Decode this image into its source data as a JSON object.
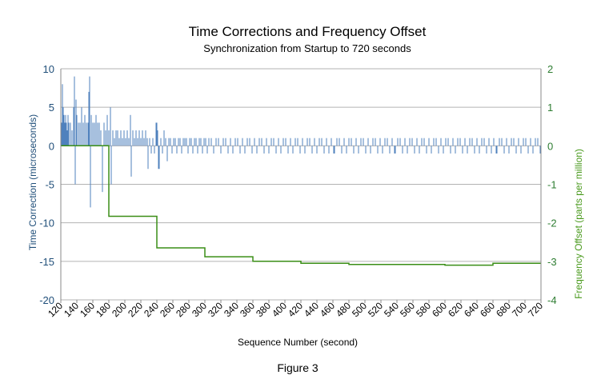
{
  "caption": "Figure 3",
  "colors": {
    "bars": "#4f81bd",
    "freq_line": "#3a8e16",
    "left_axis": "#1f4e79",
    "right_axis": "#4a9a1d",
    "grid": "#b3b3b3"
  },
  "chart_data": {
    "type": "bar",
    "title": "Time Corrections and Frequency Offset",
    "subtitle": "Synchronization from Startup to 720 seconds",
    "xlabel": "Sequence Number (second)",
    "ylabel": "Time Correction (microseconds)",
    "y2label": "Frequency Offset (parts per million)",
    "xlim": [
      120,
      720
    ],
    "ylim": [
      -20,
      10
    ],
    "y2lim": [
      -4,
      2
    ],
    "x_ticks": [
      120,
      140,
      160,
      180,
      200,
      220,
      240,
      260,
      280,
      300,
      320,
      340,
      360,
      380,
      400,
      420,
      440,
      460,
      480,
      500,
      520,
      540,
      560,
      580,
      600,
      620,
      640,
      660,
      680,
      700,
      720
    ],
    "y_ticks": [
      10,
      5,
      0,
      -5,
      -10,
      -15,
      -20
    ],
    "y2_ticks": [
      2,
      1,
      0,
      -1,
      -2,
      -3,
      -4
    ],
    "grid": true,
    "series": [
      {
        "name": "",
        "kind": "bar",
        "axis": "left",
        "description": "Time correction per second: large spikes during startup (up to 9 and down to -8), tapering to ±1 microsecond after about 300 s",
        "values": [
          {
            "x": 121,
            "y": 3
          },
          {
            "x": 122,
            "y": 8
          },
          {
            "x": 123,
            "y": 5
          },
          {
            "x": 124,
            "y": 4
          },
          {
            "x": 125,
            "y": 3
          },
          {
            "x": 126,
            "y": 4
          },
          {
            "x": 127,
            "y": 3
          },
          {
            "x": 128,
            "y": 2
          },
          {
            "x": 129,
            "y": 4
          },
          {
            "x": 130,
            "y": 3
          },
          {
            "x": 132,
            "y": 3
          },
          {
            "x": 134,
            "y": 2
          },
          {
            "x": 136,
            "y": 5
          },
          {
            "x": 137,
            "y": 9
          },
          {
            "x": 138,
            "y": -5
          },
          {
            "x": 139,
            "y": 6
          },
          {
            "x": 140,
            "y": 4
          },
          {
            "x": 142,
            "y": 3
          },
          {
            "x": 144,
            "y": 3
          },
          {
            "x": 146,
            "y": 5
          },
          {
            "x": 148,
            "y": 3
          },
          {
            "x": 150,
            "y": 4
          },
          {
            "x": 152,
            "y": 3
          },
          {
            "x": 154,
            "y": 3
          },
          {
            "x": 155,
            "y": 7
          },
          {
            "x": 156,
            "y": 9
          },
          {
            "x": 157,
            "y": -8
          },
          {
            "x": 158,
            "y": 4
          },
          {
            "x": 160,
            "y": 3
          },
          {
            "x": 162,
            "y": 3
          },
          {
            "x": 164,
            "y": 4
          },
          {
            "x": 166,
            "y": 3
          },
          {
            "x": 168,
            "y": 3
          },
          {
            "x": 170,
            "y": 2
          },
          {
            "x": 172,
            "y": -6
          },
          {
            "x": 174,
            "y": 3
          },
          {
            "x": 176,
            "y": 2
          },
          {
            "x": 178,
            "y": 4
          },
          {
            "x": 180,
            "y": 2
          },
          {
            "x": 182,
            "y": 5
          },
          {
            "x": 183,
            "y": -5
          },
          {
            "x": 185,
            "y": 2
          },
          {
            "x": 187,
            "y": 1
          },
          {
            "x": 189,
            "y": 2
          },
          {
            "x": 191,
            "y": 2
          },
          {
            "x": 193,
            "y": 1
          },
          {
            "x": 195,
            "y": 2
          },
          {
            "x": 197,
            "y": 1
          },
          {
            "x": 199,
            "y": 2
          },
          {
            "x": 201,
            "y": 1
          },
          {
            "x": 203,
            "y": 2
          },
          {
            "x": 205,
            "y": 1
          },
          {
            "x": 207,
            "y": 4
          },
          {
            "x": 208,
            "y": -4
          },
          {
            "x": 210,
            "y": 2
          },
          {
            "x": 212,
            "y": 1
          },
          {
            "x": 214,
            "y": 2
          },
          {
            "x": 216,
            "y": 1
          },
          {
            "x": 218,
            "y": 2
          },
          {
            "x": 220,
            "y": 1
          },
          {
            "x": 222,
            "y": 2
          },
          {
            "x": 224,
            "y": 1
          },
          {
            "x": 226,
            "y": 2
          },
          {
            "x": 228,
            "y": 1
          },
          {
            "x": 229,
            "y": -3
          },
          {
            "x": 231,
            "y": 1
          },
          {
            "x": 233,
            "y": -1
          },
          {
            "x": 235,
            "y": 1
          },
          {
            "x": 237,
            "y": -1
          },
          {
            "x": 239,
            "y": 3
          },
          {
            "x": 240,
            "y": 3
          },
          {
            "x": 241,
            "y": 2
          },
          {
            "x": 242,
            "y": -3
          },
          {
            "x": 243,
            "y": -3
          },
          {
            "x": 245,
            "y": 1
          },
          {
            "x": 247,
            "y": -1
          },
          {
            "x": 249,
            "y": 2
          },
          {
            "x": 251,
            "y": 1
          },
          {
            "x": 253,
            "y": -2
          },
          {
            "x": 255,
            "y": 1
          },
          {
            "x": 257,
            "y": 1
          },
          {
            "x": 259,
            "y": -1
          },
          {
            "x": 261,
            "y": 1
          },
          {
            "x": 263,
            "y": 1
          },
          {
            "x": 265,
            "y": -1
          },
          {
            "x": 267,
            "y": 1
          },
          {
            "x": 269,
            "y": 1
          },
          {
            "x": 271,
            "y": -1
          },
          {
            "x": 273,
            "y": 1
          },
          {
            "x": 275,
            "y": 1
          },
          {
            "x": 277,
            "y": 1
          },
          {
            "x": 279,
            "y": -1
          },
          {
            "x": 281,
            "y": 1
          },
          {
            "x": 283,
            "y": 1
          },
          {
            "x": 285,
            "y": -1
          },
          {
            "x": 287,
            "y": 1
          },
          {
            "x": 289,
            "y": 1
          },
          {
            "x": 291,
            "y": -1
          },
          {
            "x": 293,
            "y": 1
          },
          {
            "x": 295,
            "y": 1
          },
          {
            "x": 297,
            "y": -1
          },
          {
            "x": 299,
            "y": 1
          },
          {
            "x": 301,
            "y": 1
          },
          {
            "x": 303,
            "y": -1
          },
          {
            "x": 305,
            "y": 1
          },
          {
            "x": 308,
            "y": 1
          },
          {
            "x": 311,
            "y": -1
          },
          {
            "x": 314,
            "y": 1
          },
          {
            "x": 317,
            "y": 1
          },
          {
            "x": 320,
            "y": -1
          },
          {
            "x": 323,
            "y": 1
          },
          {
            "x": 326,
            "y": 1
          },
          {
            "x": 329,
            "y": -1
          },
          {
            "x": 332,
            "y": 1
          },
          {
            "x": 335,
            "y": -1
          },
          {
            "x": 338,
            "y": 1
          },
          {
            "x": 341,
            "y": 1
          },
          {
            "x": 344,
            "y": -1
          },
          {
            "x": 347,
            "y": 1
          },
          {
            "x": 350,
            "y": -1
          },
          {
            "x": 353,
            "y": 1
          },
          {
            "x": 356,
            "y": 1
          },
          {
            "x": 359,
            "y": -1
          },
          {
            "x": 362,
            "y": 1
          },
          {
            "x": 365,
            "y": -1
          },
          {
            "x": 368,
            "y": 1
          },
          {
            "x": 371,
            "y": 1
          },
          {
            "x": 374,
            "y": -1
          },
          {
            "x": 377,
            "y": 1
          },
          {
            "x": 380,
            "y": -1
          },
          {
            "x": 383,
            "y": 1
          },
          {
            "x": 386,
            "y": 1
          },
          {
            "x": 389,
            "y": -1
          },
          {
            "x": 392,
            "y": 1
          },
          {
            "x": 395,
            "y": -1
          },
          {
            "x": 398,
            "y": 1
          },
          {
            "x": 401,
            "y": 1
          },
          {
            "x": 404,
            "y": -1
          },
          {
            "x": 407,
            "y": 1
          },
          {
            "x": 410,
            "y": -1
          },
          {
            "x": 413,
            "y": 1
          },
          {
            "x": 416,
            "y": 1
          },
          {
            "x": 419,
            "y": -1
          },
          {
            "x": 422,
            "y": 1
          },
          {
            "x": 425,
            "y": -1
          },
          {
            "x": 428,
            "y": 1
          },
          {
            "x": 431,
            "y": 1
          },
          {
            "x": 434,
            "y": -1
          },
          {
            "x": 437,
            "y": 1
          },
          {
            "x": 440,
            "y": -1
          },
          {
            "x": 443,
            "y": 1
          },
          {
            "x": 446,
            "y": 1
          },
          {
            "x": 449,
            "y": -1
          },
          {
            "x": 452,
            "y": 1
          },
          {
            "x": 455,
            "y": -1
          },
          {
            "x": 458,
            "y": 1
          },
          {
            "x": 461,
            "y": -1
          },
          {
            "x": 462,
            "y": -1
          },
          {
            "x": 465,
            "y": 1
          },
          {
            "x": 468,
            "y": 1
          },
          {
            "x": 471,
            "y": -1
          },
          {
            "x": 474,
            "y": 1
          },
          {
            "x": 477,
            "y": -1
          },
          {
            "x": 480,
            "y": 1
          },
          {
            "x": 483,
            "y": 1
          },
          {
            "x": 486,
            "y": -1
          },
          {
            "x": 489,
            "y": 1
          },
          {
            "x": 492,
            "y": -1
          },
          {
            "x": 495,
            "y": 1
          },
          {
            "x": 498,
            "y": 1
          },
          {
            "x": 501,
            "y": -1
          },
          {
            "x": 504,
            "y": 1
          },
          {
            "x": 507,
            "y": -1
          },
          {
            "x": 510,
            "y": 1
          },
          {
            "x": 513,
            "y": 1
          },
          {
            "x": 516,
            "y": -1
          },
          {
            "x": 519,
            "y": 1
          },
          {
            "x": 522,
            "y": -1
          },
          {
            "x": 525,
            "y": 1
          },
          {
            "x": 528,
            "y": 1
          },
          {
            "x": 531,
            "y": -1
          },
          {
            "x": 534,
            "y": 1
          },
          {
            "x": 537,
            "y": -1
          },
          {
            "x": 538,
            "y": -1
          },
          {
            "x": 541,
            "y": 1
          },
          {
            "x": 544,
            "y": 1
          },
          {
            "x": 547,
            "y": -1
          },
          {
            "x": 550,
            "y": 1
          },
          {
            "x": 553,
            "y": -1
          },
          {
            "x": 556,
            "y": 1
          },
          {
            "x": 559,
            "y": 1
          },
          {
            "x": 562,
            "y": -1
          },
          {
            "x": 565,
            "y": 1
          },
          {
            "x": 568,
            "y": -1
          },
          {
            "x": 571,
            "y": 1
          },
          {
            "x": 574,
            "y": 1
          },
          {
            "x": 577,
            "y": -1
          },
          {
            "x": 580,
            "y": 1
          },
          {
            "x": 583,
            "y": -1
          },
          {
            "x": 586,
            "y": 1
          },
          {
            "x": 589,
            "y": 1
          },
          {
            "x": 592,
            "y": -1
          },
          {
            "x": 595,
            "y": 1
          },
          {
            "x": 598,
            "y": -1
          },
          {
            "x": 601,
            "y": 1
          },
          {
            "x": 604,
            "y": 1
          },
          {
            "x": 607,
            "y": -1
          },
          {
            "x": 610,
            "y": 1
          },
          {
            "x": 613,
            "y": -1
          },
          {
            "x": 616,
            "y": 1
          },
          {
            "x": 619,
            "y": 1
          },
          {
            "x": 622,
            "y": -1
          },
          {
            "x": 625,
            "y": 1
          },
          {
            "x": 628,
            "y": -1
          },
          {
            "x": 631,
            "y": 1
          },
          {
            "x": 634,
            "y": 1
          },
          {
            "x": 637,
            "y": -1
          },
          {
            "x": 640,
            "y": 1
          },
          {
            "x": 643,
            "y": -1
          },
          {
            "x": 646,
            "y": 1
          },
          {
            "x": 649,
            "y": 1
          },
          {
            "x": 652,
            "y": -1
          },
          {
            "x": 655,
            "y": 1
          },
          {
            "x": 658,
            "y": -1
          },
          {
            "x": 661,
            "y": 1
          },
          {
            "x": 664,
            "y": -1
          },
          {
            "x": 665,
            "y": -1
          },
          {
            "x": 668,
            "y": 1
          },
          {
            "x": 671,
            "y": 1
          },
          {
            "x": 674,
            "y": -1
          },
          {
            "x": 677,
            "y": 1
          },
          {
            "x": 680,
            "y": -1
          },
          {
            "x": 683,
            "y": 1
          },
          {
            "x": 686,
            "y": 1
          },
          {
            "x": 689,
            "y": -1
          },
          {
            "x": 692,
            "y": 1
          },
          {
            "x": 695,
            "y": -1
          },
          {
            "x": 698,
            "y": 1
          },
          {
            "x": 701,
            "y": 1
          },
          {
            "x": 704,
            "y": -1
          },
          {
            "x": 707,
            "y": 1
          },
          {
            "x": 710,
            "y": -1
          },
          {
            "x": 713,
            "y": 1
          },
          {
            "x": 716,
            "y": 1
          },
          {
            "x": 719,
            "y": -1
          }
        ]
      },
      {
        "name": "",
        "kind": "step-line",
        "axis": "right",
        "description": "Frequency offset, a descending step function updated at fixed intervals",
        "values": [
          {
            "x": 120,
            "y": 0
          },
          {
            "x": 180,
            "y": 0
          },
          {
            "x": 180,
            "y": -1.83
          },
          {
            "x": 240,
            "y": -1.83
          },
          {
            "x": 240,
            "y": -2.65
          },
          {
            "x": 300,
            "y": -2.65
          },
          {
            "x": 300,
            "y": -2.88
          },
          {
            "x": 360,
            "y": -2.88
          },
          {
            "x": 360,
            "y": -3.0
          },
          {
            "x": 420,
            "y": -3.0
          },
          {
            "x": 420,
            "y": -3.05
          },
          {
            "x": 480,
            "y": -3.05
          },
          {
            "x": 480,
            "y": -3.08
          },
          {
            "x": 540,
            "y": -3.08
          },
          {
            "x": 540,
            "y": -3.08
          },
          {
            "x": 600,
            "y": -3.08
          },
          {
            "x": 600,
            "y": -3.1
          },
          {
            "x": 660,
            "y": -3.1
          },
          {
            "x": 660,
            "y": -3.05
          },
          {
            "x": 720,
            "y": -3.05
          }
        ]
      }
    ]
  }
}
